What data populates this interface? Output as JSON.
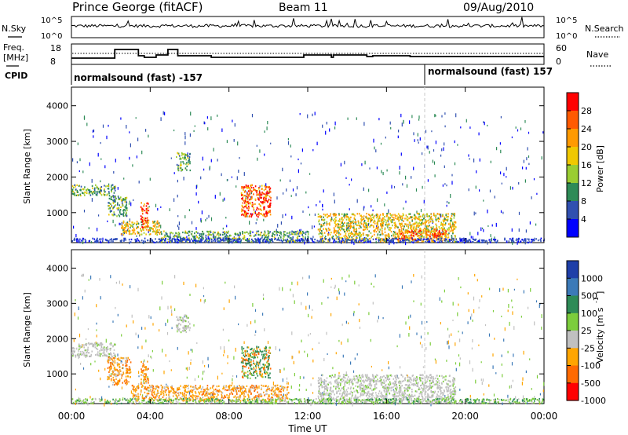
{
  "header": {
    "station": "Prince George (fitACF)",
    "beam": "Beam 11",
    "date": "09/Aug/2010"
  },
  "top_panels": {
    "nsky_label": "N.Sky",
    "nsearch_label": "N.Search",
    "freq_label_line1": "Freq.",
    "freq_label_line2": "[MHz]",
    "nave_label": "Nave",
    "cpid_label": "CPID",
    "sky_ticks": [
      "10^5",
      "10^0"
    ],
    "search_ticks": [
      "10^5",
      "10^0"
    ],
    "freq_ticks": [
      "18",
      "8"
    ],
    "nave_ticks": [
      "60",
      "0"
    ],
    "cpid_segments": [
      "normalsound (fast) -157",
      "normalsound (fast) 157"
    ]
  },
  "chart_data": [
    {
      "type": "heatmap",
      "name": "power-panel",
      "ylabel": "Slant Range [km]",
      "xlabel": "",
      "y_ticks": [
        "4000",
        "3000",
        "2000",
        "1000"
      ],
      "ylim": [
        180,
        4500
      ],
      "xlim": [
        0,
        24
      ],
      "colorbar": {
        "label": "Power [dB]",
        "tick_labels": [
          "28",
          "24",
          "20",
          "16",
          "12",
          "8",
          "4"
        ],
        "colors": [
          "#ff0000",
          "#ff5a00",
          "#ff9a00",
          "#f0c800",
          "#9acd32",
          "#2e8b57",
          "#3050b0",
          "#0000ff"
        ]
      },
      "echo_regions": [
        {
          "t0": 0.0,
          "t1": 2.2,
          "r0": 1500,
          "r1": 1800,
          "level": "green"
        },
        {
          "t0": 1.8,
          "t1": 2.8,
          "r0": 900,
          "r1": 1500,
          "level": "green"
        },
        {
          "t0": 2.5,
          "t1": 4.5,
          "r0": 400,
          "r1": 800,
          "level": "orange"
        },
        {
          "t0": 3.5,
          "t1": 3.9,
          "r0": 600,
          "r1": 1300,
          "level": "red"
        },
        {
          "t0": 4.5,
          "t1": 12.0,
          "r0": 200,
          "r1": 500,
          "level": "green"
        },
        {
          "t0": 5.3,
          "t1": 6.0,
          "r0": 2200,
          "r1": 2700,
          "level": "green"
        },
        {
          "t0": 8.6,
          "t1": 10.1,
          "r0": 900,
          "r1": 1800,
          "level": "red"
        },
        {
          "t0": 12.5,
          "t1": 19.5,
          "r0": 200,
          "r1": 1000,
          "level": "orange"
        },
        {
          "t0": 16.5,
          "t1": 19.0,
          "r0": 250,
          "r1": 550,
          "level": "red"
        },
        {
          "t0": 0.0,
          "t1": 24.0,
          "r0": 180,
          "r1": 300,
          "level": "blue"
        }
      ]
    },
    {
      "type": "heatmap",
      "name": "velocity-panel",
      "ylabel": "Slant Range [km]",
      "xlabel": "Time UT",
      "x_ticks": [
        "00:00",
        "04:00",
        "08:00",
        "12:00",
        "16:00",
        "20:00",
        "00:00"
      ],
      "y_ticks": [
        "4000",
        "3000",
        "2000",
        "1000"
      ],
      "ylim": [
        180,
        4500
      ],
      "xlim": [
        0,
        24
      ],
      "colorbar": {
        "label": "Velocity [m s^-1]",
        "tick_labels": [
          "1000",
          "500",
          "100",
          "25",
          "-25",
          "-100",
          "-500",
          "-1000"
        ],
        "colors": [
          "#1f3fa8",
          "#3c7ab8",
          "#2e8b57",
          "#7ccd3c",
          "#c0c0c0",
          "#ffa500",
          "#ff6a00",
          "#ff0000"
        ]
      },
      "echo_regions": [
        {
          "t0": 0.0,
          "t1": 2.2,
          "r0": 1500,
          "r1": 1900,
          "level": "gray"
        },
        {
          "t0": 1.8,
          "t1": 3.0,
          "r0": 700,
          "r1": 1500,
          "level": "orange"
        },
        {
          "t0": 3.5,
          "t1": 3.9,
          "r0": 700,
          "r1": 1400,
          "level": "orange"
        },
        {
          "t0": 3.0,
          "t1": 11.0,
          "r0": 250,
          "r1": 700,
          "level": "orange"
        },
        {
          "t0": 5.3,
          "t1": 6.0,
          "r0": 2200,
          "r1": 2700,
          "level": "gray"
        },
        {
          "t0": 8.6,
          "t1": 10.1,
          "r0": 900,
          "r1": 1800,
          "level": "greenorange"
        },
        {
          "t0": 12.5,
          "t1": 19.5,
          "r0": 200,
          "r1": 1000,
          "level": "gray"
        },
        {
          "t0": 0.0,
          "t1": 24.0,
          "r0": 180,
          "r1": 320,
          "level": "green"
        }
      ]
    }
  ]
}
